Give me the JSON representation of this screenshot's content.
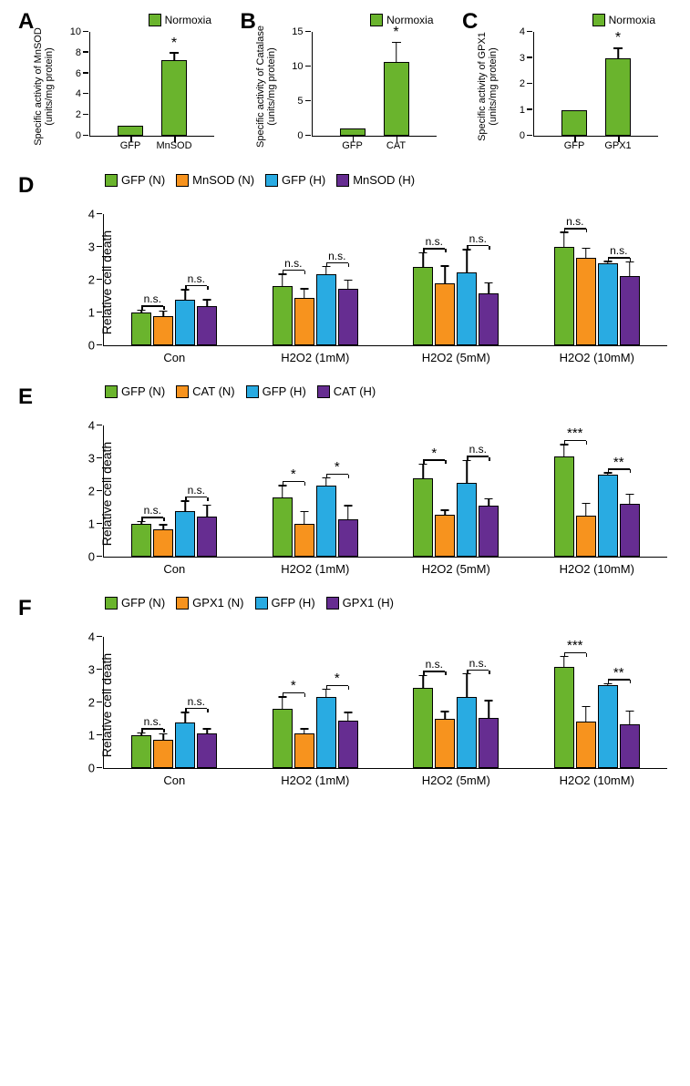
{
  "colors": {
    "green": "#6ab42d",
    "orange": "#f7931e",
    "blue": "#29abe2",
    "purple": "#662d91"
  },
  "panels_small": [
    {
      "letter": "A",
      "ylabel": "Specific activity of MnSOD\n(units/mg protein)",
      "legend": "Normoxia",
      "ymax": 10,
      "ytick_step": 2,
      "bars": [
        {
          "label": "GFP",
          "value": 1.0,
          "err": 0
        },
        {
          "label": "MnSOD",
          "value": 7.3,
          "err": 0.6,
          "sig": "*"
        }
      ]
    },
    {
      "letter": "B",
      "ylabel": "Specific activity of Catalase\n(units/mg protein)",
      "legend": "Normoxia",
      "ymax": 15,
      "ytick_step": 5,
      "bars": [
        {
          "label": "GFP",
          "value": 1.05,
          "err": 0
        },
        {
          "label": "CAT",
          "value": 10.6,
          "err": 2.8,
          "sig": "*"
        }
      ]
    },
    {
      "letter": "C",
      "ylabel": "Specific activity of GPX1\n(units/mg protein)",
      "legend": "Normoxia",
      "ymax": 4,
      "ytick_step": 1,
      "bars": [
        {
          "label": "GFP",
          "value": 1.0,
          "err": 0
        },
        {
          "label": "GPX1",
          "value": 3.0,
          "err": 0.35,
          "sig": "*"
        }
      ]
    }
  ],
  "panels_large": [
    {
      "letter": "D",
      "ylabel": "Relative cell death",
      "ymax": 4,
      "ytick_step": 1,
      "legend": [
        "GFP (N)",
        "MnSOD (N)",
        "GFP (H)",
        "MnSOD (H)"
      ],
      "x_groups": [
        "Con",
        "H2O2 (1mM)",
        "H2O2 (5mM)",
        "H2O2 (10mM)"
      ],
      "data": [
        {
          "sig": [
            "n.s.",
            "n.s."
          ],
          "bars": [
            {
              "v": 1.0,
              "e": 0.05
            },
            {
              "v": 0.9,
              "e": 0.12
            },
            {
              "v": 1.38,
              "e": 0.3
            },
            {
              "v": 1.2,
              "e": 0.17
            }
          ]
        },
        {
          "sig": [
            "n.s.",
            "n.s."
          ],
          "bars": [
            {
              "v": 1.8,
              "e": 0.35
            },
            {
              "v": 1.45,
              "e": 0.25
            },
            {
              "v": 2.18,
              "e": 0.2
            },
            {
              "v": 1.72,
              "e": 0.25
            }
          ]
        },
        {
          "sig": [
            "n.s.",
            "n.s."
          ],
          "bars": [
            {
              "v": 2.4,
              "e": 0.4
            },
            {
              "v": 1.9,
              "e": 0.5
            },
            {
              "v": 2.22,
              "e": 0.68
            },
            {
              "v": 1.58,
              "e": 0.3
            }
          ]
        },
        {
          "sig": [
            "n.s.",
            "n.s."
          ],
          "bars": [
            {
              "v": 3.0,
              "e": 0.42
            },
            {
              "v": 2.68,
              "e": 0.26
            },
            {
              "v": 2.5,
              "e": 0.03
            },
            {
              "v": 2.12,
              "e": 0.4
            }
          ]
        }
      ]
    },
    {
      "letter": "E",
      "ylabel": "Relative cell death",
      "ymax": 4,
      "ytick_step": 1,
      "legend": [
        "GFP (N)",
        "CAT (N)",
        "GFP (H)",
        "CAT (H)"
      ],
      "x_groups": [
        "Con",
        "H2O2 (1mM)",
        "H2O2 (5mM)",
        "H2O2 (10mM)"
      ],
      "data": [
        {
          "sig": [
            "n.s.",
            "n.s."
          ],
          "bars": [
            {
              "v": 1.0,
              "e": 0.05
            },
            {
              "v": 0.83,
              "e": 0.12
            },
            {
              "v": 1.38,
              "e": 0.3
            },
            {
              "v": 1.23,
              "e": 0.32
            }
          ]
        },
        {
          "sig": [
            "*",
            "*"
          ],
          "bars": [
            {
              "v": 1.8,
              "e": 0.35
            },
            {
              "v": 1.0,
              "e": 0.35
            },
            {
              "v": 2.18,
              "e": 0.2
            },
            {
              "v": 1.14,
              "e": 0.4
            }
          ]
        },
        {
          "sig": [
            "*",
            "n.s."
          ],
          "bars": [
            {
              "v": 2.4,
              "e": 0.4
            },
            {
              "v": 1.28,
              "e": 0.12
            },
            {
              "v": 2.24,
              "e": 0.67
            },
            {
              "v": 1.55,
              "e": 0.2
            }
          ]
        },
        {
          "sig": [
            "***",
            "**"
          ],
          "bars": [
            {
              "v": 3.05,
              "e": 0.35
            },
            {
              "v": 1.25,
              "e": 0.35
            },
            {
              "v": 2.5,
              "e": 0.03
            },
            {
              "v": 1.6,
              "e": 0.28
            }
          ]
        }
      ]
    },
    {
      "letter": "F",
      "ylabel": "Relative cell death",
      "ymax": 4,
      "ytick_step": 1,
      "legend": [
        "GFP (N)",
        "GPX1 (N)",
        "GFP (H)",
        "GPX1 (H)"
      ],
      "x_groups": [
        "Con",
        "H2O2 (1mM)",
        "H2O2 (5mM)",
        "H2O2 (10mM)"
      ],
      "data": [
        {
          "sig": [
            "n.s.",
            "n.s."
          ],
          "bars": [
            {
              "v": 1.0,
              "e": 0.05
            },
            {
              "v": 0.85,
              "e": 0.17
            },
            {
              "v": 1.38,
              "e": 0.3
            },
            {
              "v": 1.05,
              "e": 0.12
            }
          ]
        },
        {
          "sig": [
            "*",
            "*"
          ],
          "bars": [
            {
              "v": 1.8,
              "e": 0.35
            },
            {
              "v": 1.05,
              "e": 0.12
            },
            {
              "v": 2.18,
              "e": 0.2
            },
            {
              "v": 1.45,
              "e": 0.22
            }
          ]
        },
        {
          "sig": [
            "n.s.",
            "n.s."
          ],
          "bars": [
            {
              "v": 2.45,
              "e": 0.35
            },
            {
              "v": 1.5,
              "e": 0.2
            },
            {
              "v": 2.18,
              "e": 0.67
            },
            {
              "v": 1.52,
              "e": 0.52
            }
          ]
        },
        {
          "sig": [
            "***",
            "**"
          ],
          "bars": [
            {
              "v": 3.08,
              "e": 0.3
            },
            {
              "v": 1.42,
              "e": 0.43
            },
            {
              "v": 2.52,
              "e": 0.03
            },
            {
              "v": 1.32,
              "e": 0.4
            }
          ]
        }
      ]
    }
  ]
}
